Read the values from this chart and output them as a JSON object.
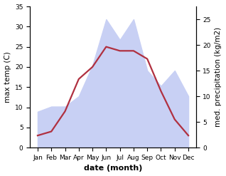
{
  "months": [
    "Jan",
    "Feb",
    "Mar",
    "Apr",
    "May",
    "Jun",
    "Jul",
    "Aug",
    "Sep",
    "Oct",
    "Nov",
    "Dec"
  ],
  "temperature": [
    3,
    4,
    9,
    17,
    20,
    25,
    24,
    24,
    22,
    14,
    7,
    3
  ],
  "precipitation": [
    7,
    8,
    8,
    10,
    16,
    25,
    21,
    25,
    15,
    12,
    15,
    10
  ],
  "temp_color": "#b03040",
  "precip_fill_color": "#c8d0f4",
  "temp_ylim": [
    0,
    35
  ],
  "precip_ylim": [
    0,
    27.5
  ],
  "temp_yticks": [
    0,
    5,
    10,
    15,
    20,
    25,
    30,
    35
  ],
  "precip_yticks": [
    0,
    5,
    10,
    15,
    20,
    25
  ],
  "left_ylabel": "max temp (C)",
  "right_ylabel": "med. precipitation (kg/m2)",
  "xlabel": "date (month)",
  "background_color": "#ffffff",
  "label_fontsize": 7.5,
  "tick_fontsize": 6.5,
  "xlabel_fontsize": 8,
  "linewidth": 1.6
}
